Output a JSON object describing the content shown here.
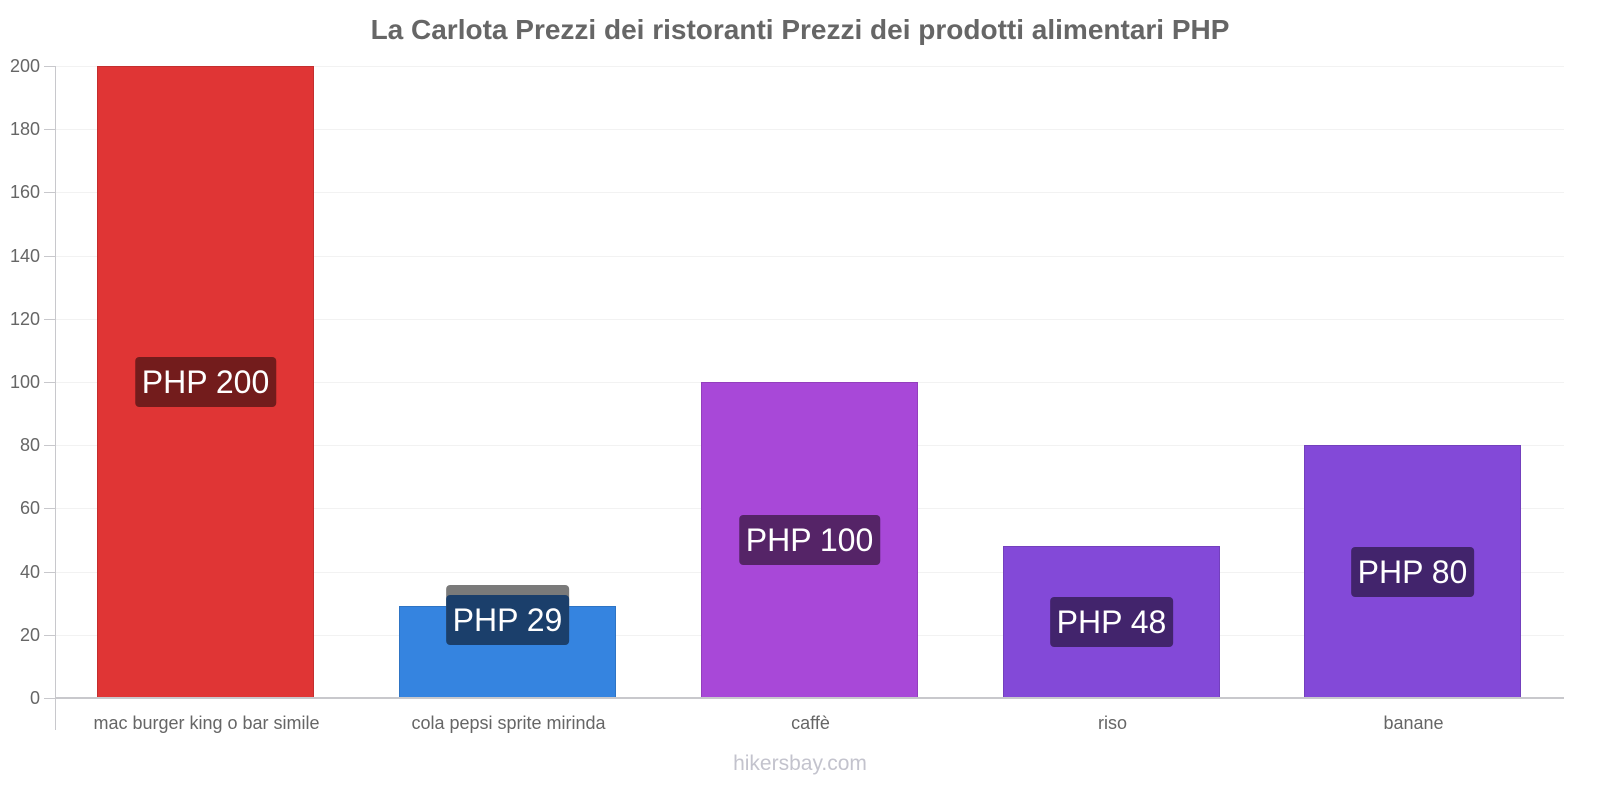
{
  "title": "La Carlota Prezzi dei ristoranti Prezzi dei prodotti alimentari PHP",
  "watermark": "hikersbay.com",
  "y_ticks": [
    "0",
    "20",
    "40",
    "60",
    "80",
    "100",
    "120",
    "140",
    "160",
    "180",
    "200"
  ],
  "bars": [
    {
      "category": "mac burger king o bar simile",
      "value": 200,
      "label": "PHP 200",
      "color": "#e03535",
      "label_bg": "#731c1c"
    },
    {
      "category": "cola pepsi sprite mirinda",
      "value": 29,
      "label": "PHP 29",
      "color": "#3584e0",
      "label_bg": "#1b3f6b"
    },
    {
      "category": "caffè",
      "value": 100,
      "label": "PHP 100",
      "color": "#a848d8",
      "label_bg": "#552467"
    },
    {
      "category": "riso",
      "value": 48,
      "label": "PHP 48",
      "color": "#8349d8",
      "label_bg": "#42246c"
    },
    {
      "category": "banane",
      "value": 80,
      "label": "PHP 80",
      "color": "#8349d8",
      "label_bg": "#42246c"
    }
  ],
  "chart_data": {
    "type": "bar",
    "title": "La Carlota Prezzi dei ristoranti Prezzi dei prodotti alimentari PHP",
    "categories": [
      "mac burger king o bar simile",
      "cola pepsi sprite mirinda",
      "caffè",
      "riso",
      "banane"
    ],
    "values": [
      200,
      29,
      100,
      48,
      80
    ],
    "data_labels": [
      "PHP 200",
      "PHP 29",
      "PHP 100",
      "PHP 48",
      "PHP 80"
    ],
    "colors": [
      "#e03535",
      "#3584e0",
      "#a848d8",
      "#8349d8",
      "#8349d8"
    ],
    "xlabel": "",
    "ylabel": "",
    "ylim": [
      0,
      200
    ],
    "y_ticks": [
      0,
      20,
      40,
      60,
      80,
      100,
      120,
      140,
      160,
      180,
      200
    ],
    "grid": true,
    "legend": "none",
    "watermark": "hikersbay.com"
  }
}
